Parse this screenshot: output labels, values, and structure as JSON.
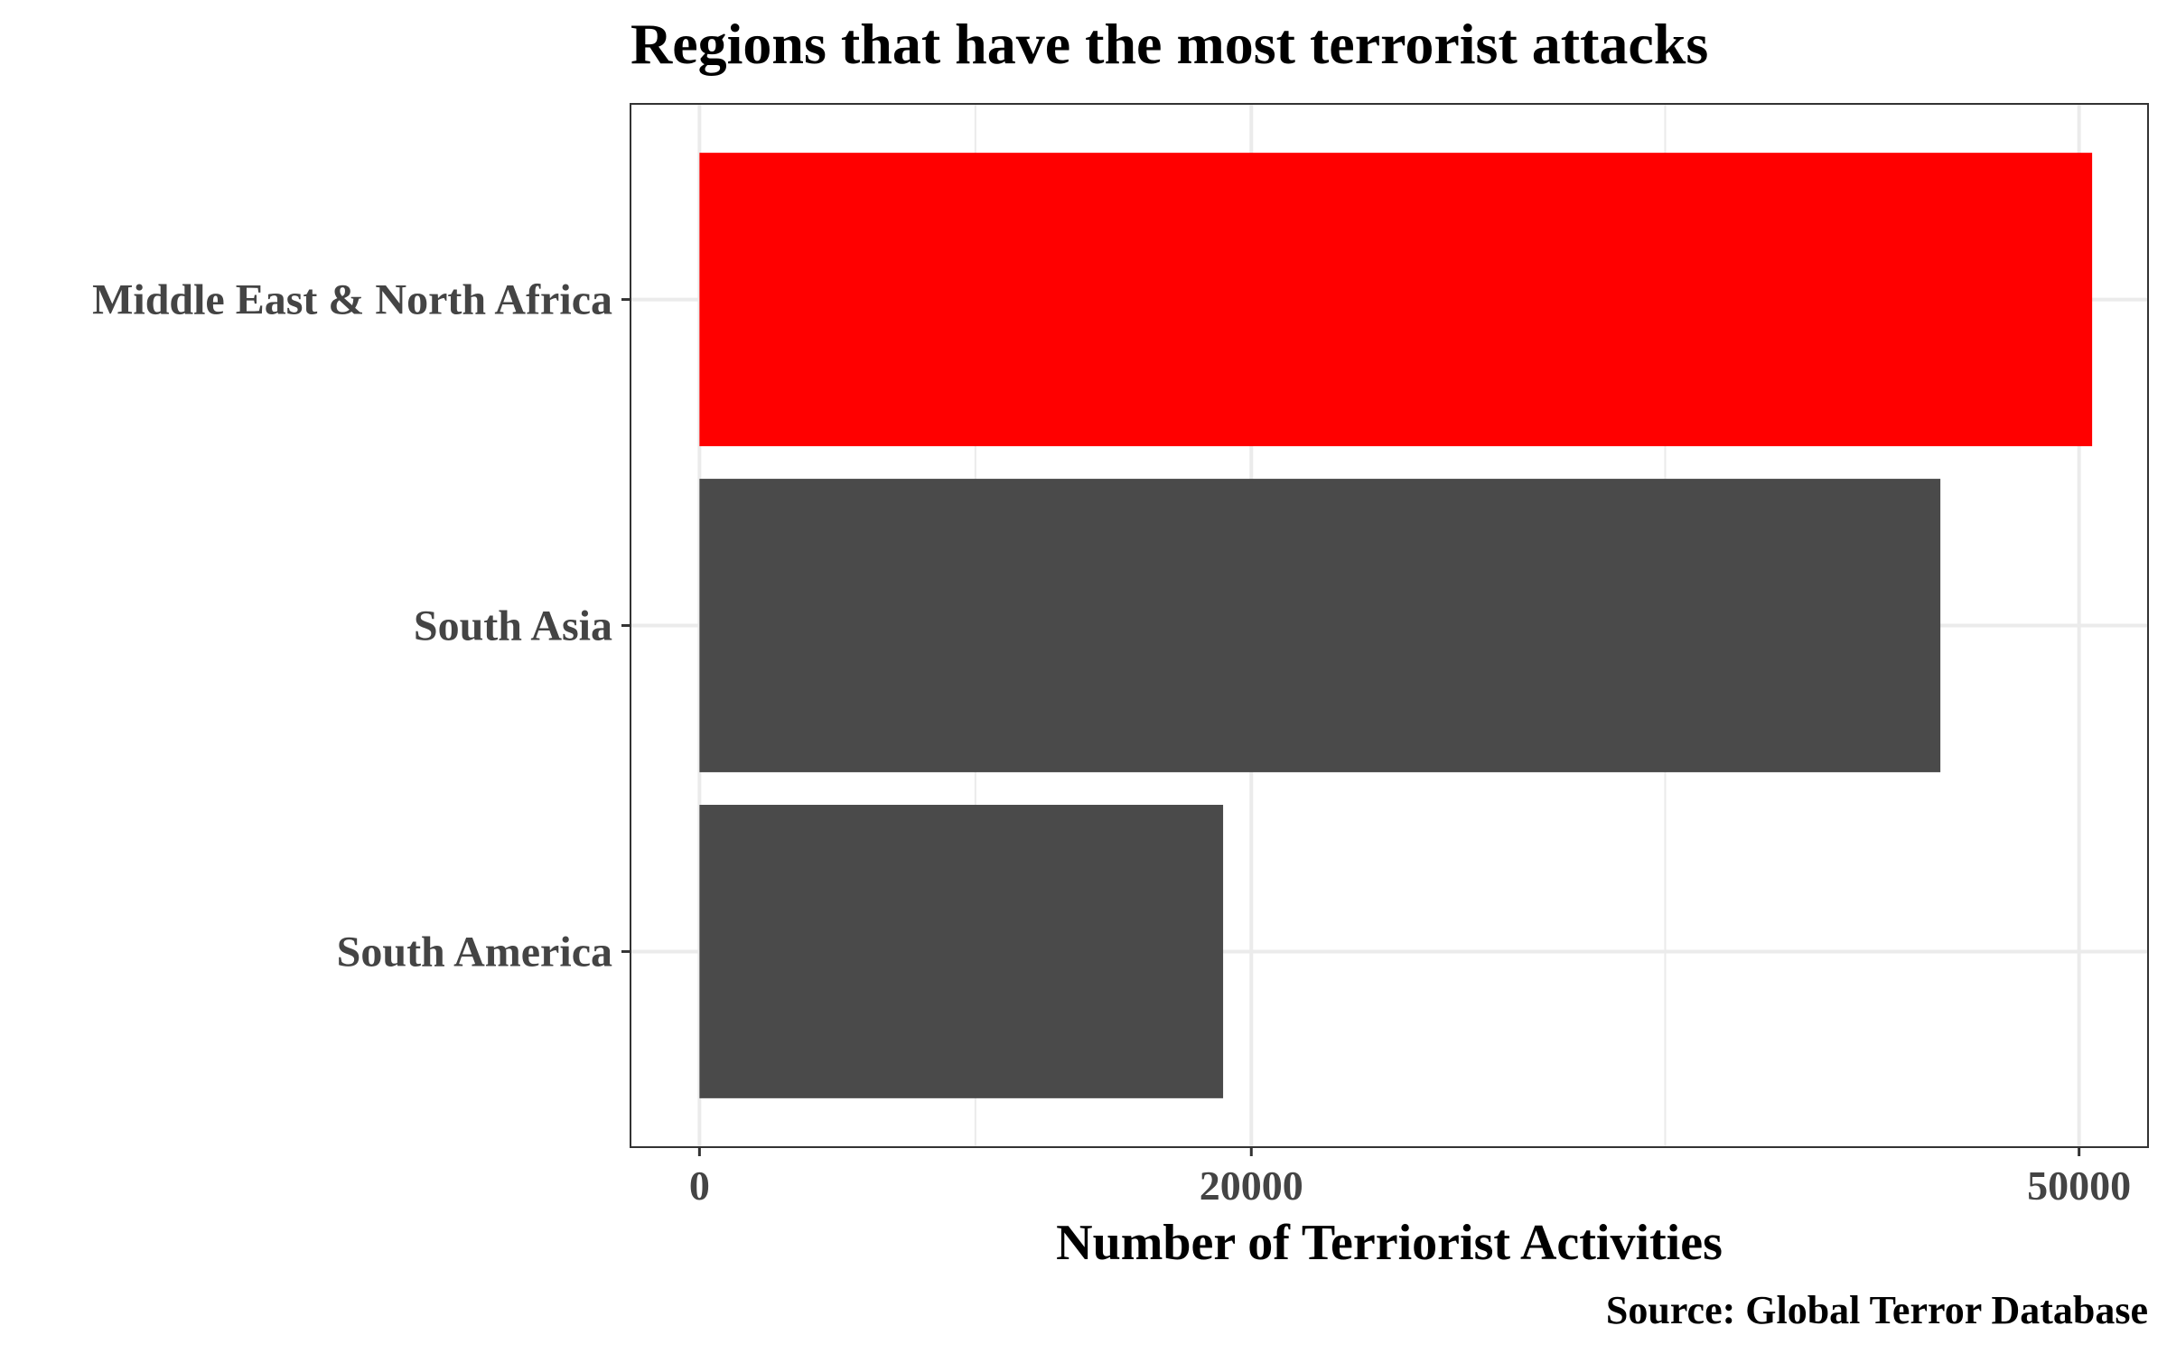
{
  "chart_data": {
    "type": "bar",
    "orientation": "horizontal",
    "title": "Regions that have the most terrorist attacks",
    "xlabel": "Number of Terriorist Activities",
    "ylabel": "",
    "caption": "Source: Global Terror Database",
    "categories": [
      "Middle East & North Africa",
      "South Asia",
      "South America"
    ],
    "values": [
      50474,
      44974,
      18978
    ],
    "bar_colors": [
      "#ff0000",
      "#4a4a4a",
      "#4a4a4a"
    ],
    "xlim": [
      -2500,
      52500
    ],
    "xticks": [
      {
        "value": 0,
        "label": "0"
      },
      {
        "value": 20000,
        "label": "20000"
      },
      {
        "value": 50000,
        "label": "50000"
      }
    ],
    "x_major_gridlines": [
      0,
      20000,
      50000
    ],
    "x_minor_gridlines": [
      10000,
      35000
    ],
    "grid": true,
    "legend": "none",
    "colors": {
      "highlight": "#ff0000",
      "bar": "#4a4a4a",
      "grid": "#ebebeb",
      "panel_border": "#333333"
    }
  }
}
